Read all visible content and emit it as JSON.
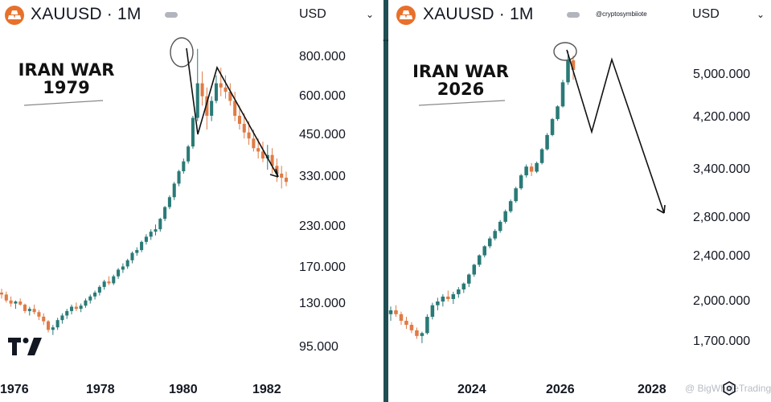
{
  "left_panel": {
    "symbol": "XAUUSD · 1M",
    "currency": "USD",
    "annotation": [
      "IRAN WAR",
      "1979"
    ],
    "y_tick_labels": [
      "800.000",
      "600.000",
      "450.000",
      "330.000",
      "230.000",
      "170.000",
      "130.000",
      "95.000"
    ],
    "x_tick_labels": [
      "1976",
      "1978",
      "1980",
      "1982"
    ]
  },
  "right_panel": {
    "symbol": "XAUUSD · 1M",
    "currency": "USD",
    "credit": "@cryptosymbiiote",
    "annotation": [
      "IRAN WAR",
      "2026"
    ],
    "y_tick_labels": [
      "5,000.000",
      "4,200.000",
      "3,400.000",
      "2,800.000",
      "2,400.000",
      "2,000.000",
      "1,700.000"
    ],
    "x_tick_labels": [
      "2024",
      "2026",
      "2028"
    ],
    "watermark": "@ BigWhaleTrading"
  },
  "colors": {
    "up": "#2a7a77",
    "down": "#e07b45",
    "brand": "#e8702a",
    "divider": "#1f4f54"
  },
  "chart_data": [
    {
      "type": "candlestick",
      "title": "XAUUSD · 1M",
      "scale": "log",
      "y_axis_ticks": [
        800,
        600,
        450,
        330,
        230,
        170,
        130,
        95
      ],
      "x_axis_ticks": [
        "1976",
        "1978",
        "1980",
        "1982"
      ],
      "annotation": "IRAN WAR 1979",
      "candles_ohlc": [
        [
          142,
          146,
          136,
          140
        ],
        [
          140,
          143,
          132,
          134
        ],
        [
          134,
          138,
          128,
          131
        ],
        [
          131,
          134,
          126,
          133
        ],
        [
          133,
          136,
          129,
          130
        ],
        [
          130,
          131,
          122,
          124
        ],
        [
          124,
          128,
          120,
          126
        ],
        [
          126,
          130,
          121,
          123
        ],
        [
          123,
          125,
          116,
          119
        ],
        [
          119,
          122,
          112,
          115
        ],
        [
          115,
          116,
          106,
          108
        ],
        [
          108,
          112,
          104,
          110
        ],
        [
          110,
          118,
          108,
          116
        ],
        [
          116,
          122,
          113,
          120
        ],
        [
          120,
          126,
          117,
          124
        ],
        [
          124,
          130,
          121,
          128
        ],
        [
          128,
          132,
          124,
          126
        ],
        [
          126,
          131,
          123,
          129
        ],
        [
          129,
          136,
          127,
          134
        ],
        [
          134,
          140,
          131,
          138
        ],
        [
          138,
          144,
          135,
          142
        ],
        [
          142,
          150,
          139,
          148
        ],
        [
          148,
          156,
          145,
          154
        ],
        [
          154,
          160,
          150,
          152
        ],
        [
          152,
          162,
          150,
          160
        ],
        [
          160,
          170,
          157,
          168
        ],
        [
          168,
          176,
          164,
          172
        ],
        [
          172,
          182,
          169,
          180
        ],
        [
          180,
          192,
          176,
          190
        ],
        [
          190,
          198,
          186,
          194
        ],
        [
          194,
          208,
          191,
          206
        ],
        [
          206,
          218,
          202,
          214
        ],
        [
          214,
          226,
          209,
          222
        ],
        [
          222,
          234,
          216,
          226
        ],
        [
          226,
          246,
          222,
          244
        ],
        [
          244,
          268,
          240,
          266
        ],
        [
          266,
          290,
          262,
          286
        ],
        [
          286,
          320,
          280,
          316
        ],
        [
          316,
          350,
          310,
          346
        ],
        [
          346,
          380,
          340,
          372
        ],
        [
          372,
          420,
          366,
          415
        ],
        [
          415,
          520,
          408,
          512
        ],
        [
          512,
          850,
          500,
          660
        ],
        [
          660,
          720,
          560,
          600
        ],
        [
          600,
          640,
          470,
          520
        ],
        [
          520,
          600,
          500,
          580
        ],
        [
          580,
          700,
          570,
          660
        ],
        [
          660,
          740,
          600,
          640
        ],
        [
          640,
          700,
          590,
          620
        ],
        [
          620,
          660,
          560,
          580
        ],
        [
          580,
          620,
          500,
          520
        ],
        [
          520,
          560,
          470,
          490
        ],
        [
          490,
          530,
          440,
          460
        ],
        [
          460,
          500,
          420,
          440
        ],
        [
          440,
          470,
          400,
          410
        ],
        [
          410,
          440,
          380,
          400
        ],
        [
          400,
          430,
          370,
          380
        ],
        [
          380,
          420,
          350,
          390
        ],
        [
          390,
          410,
          340,
          360
        ],
        [
          360,
          380,
          320,
          340
        ],
        [
          340,
          360,
          305,
          330
        ],
        [
          330,
          345,
          310,
          320
        ]
      ]
    },
    {
      "type": "candlestick",
      "title": "XAUUSD · 1M",
      "scale": "log",
      "y_axis_ticks": [
        5000,
        4200,
        3400,
        2800,
        2400,
        2000,
        1700
      ],
      "x_axis_ticks": [
        "2024",
        "2026",
        "2028"
      ],
      "annotation": "IRAN WAR 2026",
      "candles_ohlc": [
        [
          1900,
          1960,
          1850,
          1930
        ],
        [
          1930,
          1970,
          1880,
          1900
        ],
        [
          1900,
          1920,
          1820,
          1850
        ],
        [
          1850,
          1880,
          1790,
          1820
        ],
        [
          1820,
          1840,
          1760,
          1780
        ],
        [
          1780,
          1800,
          1720,
          1740
        ],
        [
          1740,
          1770,
          1690,
          1760
        ],
        [
          1760,
          1900,
          1750,
          1880
        ],
        [
          1880,
          1990,
          1860,
          1970
        ],
        [
          1970,
          2030,
          1930,
          2000
        ],
        [
          2000,
          2060,
          1960,
          2040
        ],
        [
          2040,
          2090,
          2000,
          2020
        ],
        [
          2020,
          2080,
          1980,
          2060
        ],
        [
          2060,
          2120,
          2030,
          2100
        ],
        [
          2100,
          2160,
          2070,
          2150
        ],
        [
          2150,
          2240,
          2120,
          2230
        ],
        [
          2230,
          2330,
          2210,
          2320
        ],
        [
          2320,
          2420,
          2300,
          2410
        ],
        [
          2410,
          2510,
          2390,
          2500
        ],
        [
          2500,
          2600,
          2480,
          2580
        ],
        [
          2580,
          2680,
          2560,
          2660
        ],
        [
          2660,
          2780,
          2640,
          2760
        ],
        [
          2760,
          2900,
          2740,
          2880
        ],
        [
          2880,
          3020,
          2860,
          3000
        ],
        [
          3000,
          3180,
          2980,
          3160
        ],
        [
          3160,
          3350,
          3140,
          3330
        ],
        [
          3330,
          3480,
          3300,
          3450
        ],
        [
          3450,
          3500,
          3320,
          3380
        ],
        [
          3380,
          3520,
          3360,
          3500
        ],
        [
          3500,
          3720,
          3480,
          3700
        ],
        [
          3700,
          3950,
          3680,
          3920
        ],
        [
          3920,
          4200,
          3900,
          4180
        ],
        [
          4180,
          4420,
          4150,
          4400
        ],
        [
          4400,
          4900,
          4380,
          4850
        ],
        [
          4850,
          5500,
          4800,
          5300
        ],
        [
          5300,
          5400,
          4900,
          5100
        ]
      ]
    }
  ]
}
